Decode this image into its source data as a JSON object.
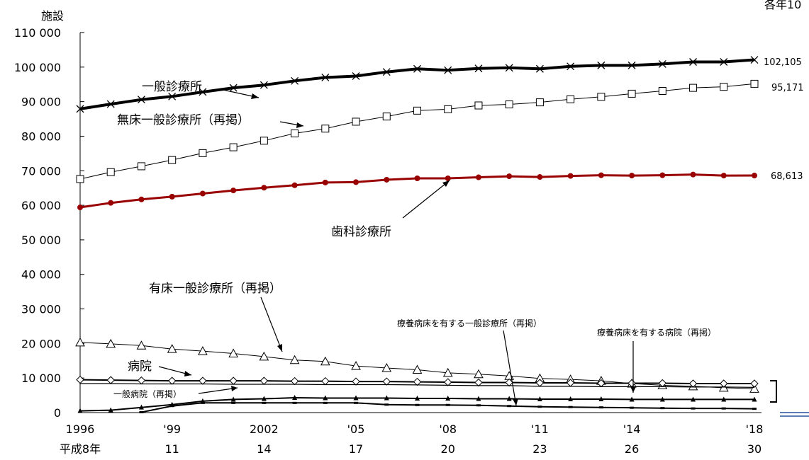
{
  "chart_data": {
    "type": "line",
    "note": "各年10",
    "ylabel": "施設",
    "ylim": [
      0,
      110000
    ],
    "yticks": [
      0,
      10000,
      20000,
      30000,
      40000,
      50000,
      60000,
      70000,
      80000,
      90000,
      100000,
      110000
    ],
    "ytick_labels": [
      "0",
      "10 000",
      "20 000",
      "30 000",
      "40 000",
      "50 000",
      "60 000",
      "70 000",
      "80 000",
      "90 000",
      "100 000",
      "110 000"
    ],
    "x": [
      1996,
      1997,
      1998,
      1999,
      2000,
      2001,
      2002,
      2003,
      2004,
      2005,
      2006,
      2007,
      2008,
      2009,
      2010,
      2011,
      2012,
      2013,
      2014,
      2015,
      2016,
      2017,
      2018
    ],
    "xticks": [
      {
        "x": 1996,
        "top": "1996",
        "bottom": "平成8年"
      },
      {
        "x": 1999,
        "top": "'99",
        "bottom": "11"
      },
      {
        "x": 2002,
        "top": "2002",
        "bottom": "14"
      },
      {
        "x": 2005,
        "top": "'05",
        "bottom": "17"
      },
      {
        "x": 2008,
        "top": "'08",
        "bottom": "20"
      },
      {
        "x": 2011,
        "top": "'11",
        "bottom": "23"
      },
      {
        "x": 2014,
        "top": "'14",
        "bottom": "26"
      },
      {
        "x": 2018,
        "top": "'18",
        "bottom": "30"
      }
    ],
    "series": [
      {
        "name": "一般診療所",
        "color": "#000000",
        "marker": "cross",
        "end_label": "102,105",
        "values": [
          87900,
          89300,
          90600,
          91500,
          92800,
          94000,
          94800,
          96000,
          97000,
          97400,
          98600,
          99500,
          99100,
          99600,
          99800,
          99500,
          100200,
          100500,
          100500,
          100900,
          101500,
          101500,
          102105
        ]
      },
      {
        "name": "無床一般診療所（再掲）",
        "color": "#000000",
        "marker": "square",
        "end_label": "95,171",
        "values": [
          67600,
          69600,
          71300,
          73100,
          75100,
          76800,
          78700,
          80800,
          82200,
          84200,
          85700,
          87400,
          87800,
          88900,
          89200,
          89800,
          90700,
          91400,
          92300,
          93100,
          94000,
          94300,
          95171
        ]
      },
      {
        "name": "歯科診療所",
        "color": "#990000",
        "marker": "dot",
        "end_label": "68,613",
        "values": [
          59400,
          60700,
          61700,
          62500,
          63400,
          64300,
          65100,
          65800,
          66600,
          66700,
          67400,
          67800,
          67800,
          68100,
          68400,
          68200,
          68500,
          68700,
          68600,
          68700,
          68900,
          68600,
          68613
        ]
      },
      {
        "name": "有床一般診療所（再掲）",
        "color": "#000000",
        "marker": "triangle",
        "values": [
          20300,
          19900,
          19400,
          18400,
          17800,
          17100,
          16200,
          15200,
          14800,
          13500,
          12900,
          12400,
          11500,
          11100,
          10600,
          9900,
          9600,
          9200,
          8400,
          7900,
          7600,
          7200,
          6900
        ]
      },
      {
        "name": "病院",
        "color": "#000000",
        "marker": "diamond",
        "values": [
          9500,
          9400,
          9300,
          9200,
          9200,
          9200,
          9200,
          9100,
          9100,
          9000,
          9000,
          8900,
          8800,
          8700,
          8700,
          8600,
          8600,
          8500,
          8500,
          8500,
          8400,
          8400,
          8400
        ]
      },
      {
        "name": "一般病院（再掲）",
        "color": "#000000",
        "marker": "none",
        "values": [
          8400,
          8400,
          8300,
          8300,
          8300,
          8200,
          8200,
          8200,
          8100,
          8100,
          8100,
          8000,
          7900,
          7800,
          7800,
          7600,
          7600,
          7500,
          7500,
          7500,
          7400,
          7400,
          7300
        ]
      },
      {
        "name": "療養病床を有する病院（再掲）",
        "color": "#000000",
        "marker": "smalltriangle",
        "values": [
          500,
          700,
          1500,
          2300,
          3300,
          3800,
          4000,
          4300,
          4200,
          4200,
          4200,
          4100,
          4100,
          4000,
          4000,
          3900,
          3900,
          3900,
          3800,
          3800,
          3800,
          3800,
          3800
        ]
      },
      {
        "name": "療養病床を有する一般診療所（再掲）",
        "color": "#000000",
        "marker": "smalldash",
        "values": null,
        "x_start": 1998,
        "values_from_1998": [
          100,
          1900,
          2800,
          2800,
          2800,
          2800,
          2800,
          2800,
          2300,
          2200,
          2200,
          2100,
          1900,
          1700,
          1600,
          1500,
          1400,
          1300,
          1200,
          1200,
          1100
        ]
      }
    ],
    "annotations": [
      "一般診療所",
      "無床一般診療所（再掲）",
      "歯科診療所",
      "有床一般診療所（再掲）",
      "病院",
      "一般病院（再掲）",
      "療養病床を有する一般診療所（再掲）",
      "療養病床を有する病院（再掲）"
    ]
  }
}
